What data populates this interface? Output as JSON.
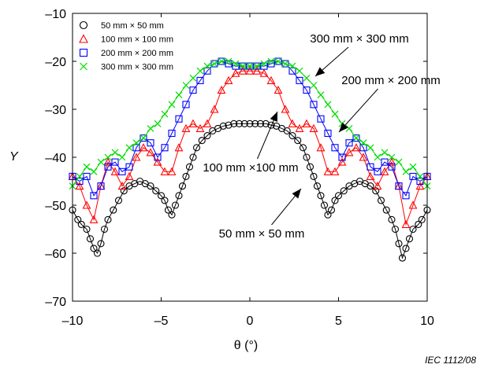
{
  "chart_data": {
    "type": "scatter",
    "title": "",
    "xlabel": "θ (°)",
    "ylabel": "Y",
    "xlim": [
      -10,
      10
    ],
    "ylim": [
      -70,
      -10
    ],
    "xticks": [
      -10,
      -5,
      0,
      5,
      10
    ],
    "yticks": [
      -10,
      -20,
      -30,
      -40,
      -50,
      -60,
      -70
    ],
    "xtick_labels": [
      "–10",
      "–5",
      "0",
      "5",
      "10"
    ],
    "ytick_labels": [
      "–10",
      "–20",
      "–30",
      "–40",
      "–50",
      "–60",
      "–70"
    ],
    "grid": false,
    "legend_position": "top-left",
    "caption": "IEC  1112/08",
    "series": [
      {
        "name": "50 mm × 50 mm",
        "marker": "circle",
        "color": "#000000",
        "x": [
          -10,
          -9.7,
          -9.5,
          -9.2,
          -9.0,
          -8.8,
          -8.6,
          -8.4,
          -8.2,
          -8.0,
          -7.7,
          -7.4,
          -7.1,
          -6.8,
          -6.5,
          -6.2,
          -5.9,
          -5.6,
          -5.3,
          -5.0,
          -4.8,
          -4.6,
          -4.4,
          -4.2,
          -4.0,
          -3.8,
          -3.6,
          -3.4,
          -3.2,
          -3.0,
          -2.7,
          -2.4,
          -2.1,
          -1.8,
          -1.5,
          -1.2,
          -0.9,
          -0.6,
          -0.3,
          0,
          0.3,
          0.6,
          0.9,
          1.2,
          1.5,
          1.8,
          2.1,
          2.4,
          2.7,
          3.0,
          3.2,
          3.4,
          3.6,
          3.8,
          4.0,
          4.2,
          4.4,
          4.6,
          4.8,
          5.0,
          5.3,
          5.6,
          5.9,
          6.2,
          6.5,
          6.8,
          7.1,
          7.4,
          7.7,
          8.0,
          8.2,
          8.4,
          8.6,
          8.8,
          9.0,
          9.2,
          9.5,
          9.7,
          10
        ],
        "y": [
          -51,
          -53,
          -54,
          -55,
          -57,
          -59,
          -60,
          -58,
          -55,
          -53,
          -51,
          -49,
          -47,
          -46,
          -45.5,
          -45,
          -45.5,
          -46,
          -47,
          -48,
          -49,
          -51,
          -52,
          -50,
          -48,
          -46,
          -44,
          -42,
          -40,
          -38,
          -36.5,
          -35.5,
          -34.5,
          -34,
          -33.5,
          -33.3,
          -33,
          -33,
          -33,
          -33,
          -33,
          -33,
          -33,
          -33.3,
          -33.5,
          -34,
          -34.5,
          -35.5,
          -36.5,
          -38,
          -40,
          -42,
          -44,
          -46,
          -48,
          -50,
          -52,
          -51,
          -49,
          -48,
          -47,
          -46,
          -45.5,
          -45,
          -45.5,
          -46,
          -47,
          -49,
          -51,
          -53,
          -55,
          -58,
          -61,
          -59,
          -57,
          -55,
          -54,
          -53,
          -51
        ]
      },
      {
        "name": "100 mm × 100 mm",
        "marker": "triangle",
        "color": "#ff0000",
        "x": [
          -10,
          -9.6,
          -9.2,
          -8.8,
          -8.4,
          -8.0,
          -7.6,
          -7.2,
          -6.8,
          -6.4,
          -6.0,
          -5.6,
          -5.2,
          -4.8,
          -4.4,
          -4.0,
          -3.6,
          -3.2,
          -2.8,
          -2.4,
          -2.0,
          -1.6,
          -1.2,
          -0.8,
          -0.4,
          0,
          0.4,
          0.8,
          1.2,
          1.6,
          2.0,
          2.4,
          2.8,
          3.2,
          3.6,
          4.0,
          4.4,
          4.8,
          5.2,
          5.6,
          6.0,
          6.4,
          6.8,
          7.2,
          7.6,
          8.0,
          8.4,
          8.8,
          9.2,
          9.6,
          10
        ],
        "y": [
          -44,
          -46,
          -50,
          -53,
          -46,
          -41,
          -43,
          -46,
          -44,
          -40,
          -38,
          -39,
          -41,
          -43,
          -43,
          -38,
          -34,
          -33,
          -34,
          -33,
          -30,
          -26,
          -24,
          -22.5,
          -22,
          -22,
          -22,
          -22.5,
          -24,
          -26,
          -30,
          -33,
          -34,
          -33,
          -34,
          -38,
          -43,
          -43,
          -41,
          -39,
          -38,
          -40,
          -44,
          -46,
          -43,
          -41,
          -46,
          -54,
          -50,
          -46,
          -44
        ]
      },
      {
        "name": "200 mm × 200 mm",
        "marker": "square",
        "color": "#0000ff",
        "x": [
          -10,
          -9.6,
          -9.2,
          -8.8,
          -8.4,
          -8.0,
          -7.6,
          -7.2,
          -6.8,
          -6.4,
          -6.0,
          -5.6,
          -5.2,
          -4.8,
          -4.4,
          -4.0,
          -3.6,
          -3.2,
          -2.8,
          -2.4,
          -2.0,
          -1.6,
          -1.2,
          -0.8,
          -0.4,
          0,
          0.4,
          0.8,
          1.2,
          1.6,
          2.0,
          2.4,
          2.8,
          3.2,
          3.6,
          4.0,
          4.4,
          4.8,
          5.2,
          5.6,
          6.0,
          6.4,
          6.8,
          7.2,
          7.6,
          8.0,
          8.4,
          8.8,
          9.2,
          9.6,
          10
        ],
        "y": [
          -44,
          -45,
          -44,
          -48,
          -46,
          -42,
          -41,
          -43,
          -42,
          -38,
          -36,
          -37,
          -40,
          -38,
          -35,
          -32,
          -29,
          -26,
          -24,
          -22,
          -20.5,
          -20,
          -20.5,
          -21,
          -21,
          -21,
          -21,
          -21,
          -20.5,
          -20,
          -20.5,
          -22,
          -24,
          -26,
          -29,
          -32,
          -35,
          -38,
          -40,
          -37,
          -36,
          -38,
          -42,
          -43,
          -41,
          -42,
          -46,
          -48,
          -44,
          -45,
          -44
        ]
      },
      {
        "name": "300 mm × 300 mm",
        "marker": "cross",
        "color": "#00dd00",
        "x": [
          -10,
          -9.6,
          -9.2,
          -8.8,
          -8.4,
          -8.0,
          -7.6,
          -7.2,
          -6.8,
          -6.4,
          -6.0,
          -5.6,
          -5.2,
          -4.8,
          -4.4,
          -4.0,
          -3.6,
          -3.2,
          -2.8,
          -2.4,
          -2.0,
          -1.6,
          -1.2,
          -0.8,
          -0.4,
          0,
          0.4,
          0.8,
          1.2,
          1.6,
          2.0,
          2.4,
          2.8,
          3.2,
          3.6,
          4.0,
          4.4,
          4.8,
          5.2,
          5.6,
          6.0,
          6.4,
          6.8,
          7.2,
          7.6,
          8.0,
          8.4,
          8.8,
          9.2,
          9.6,
          10
        ],
        "y": [
          -46,
          -44,
          -42,
          -43,
          -41,
          -40,
          -39,
          -40,
          -38,
          -37,
          -36,
          -34,
          -33,
          -31,
          -29,
          -27,
          -25,
          -23.5,
          -22,
          -21,
          -20.5,
          -20,
          -20,
          -20.5,
          -21,
          -21,
          -21,
          -20.5,
          -20,
          -20,
          -20.5,
          -21,
          -22,
          -23.5,
          -25,
          -27,
          -29,
          -31,
          -33,
          -34,
          -36,
          -37,
          -38,
          -40,
          -39,
          -40,
          -41,
          -43,
          -42,
          -44,
          -46
        ]
      }
    ],
    "annotations": [
      {
        "text": "300 mm × 300 mm",
        "target_x": 3.8,
        "target_y": -22
      },
      {
        "text": "200 mm × 200 mm",
        "target_x": 5.2,
        "target_y": -34
      },
      {
        "text": "100 mm ×100 mm",
        "target_x": 1.6,
        "target_y": -30
      },
      {
        "text": "50 mm × 50 mm",
        "target_x": 3.5,
        "target_y": -44
      }
    ]
  }
}
